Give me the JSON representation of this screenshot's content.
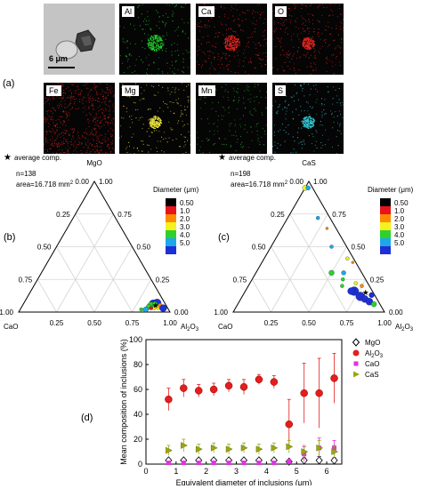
{
  "panel_labels": {
    "a": "(a)",
    "b": "(b)",
    "c": "(c)",
    "d": "(d)"
  },
  "eds_maps": {
    "scale_bar": "6 μm",
    "tiles": [
      {
        "label": "Al",
        "color": "#21d12a"
      },
      {
        "label": "Ca",
        "color": "#e0241e"
      },
      {
        "label": "O",
        "color": "#e0241e"
      },
      {
        "label": "Fe",
        "color": "#d4201c"
      },
      {
        "label": "Mg",
        "color": "#e6dd3a"
      },
      {
        "label": "Mn",
        "color": "#2ba82e"
      },
      {
        "label": "S",
        "color": "#33c4d0"
      }
    ]
  },
  "ternary_b": {
    "top_vertex": "MgO",
    "left_vertex": "CaO",
    "right_vertex_main": "Al",
    "right_vertex_sub": "2",
    "right_vertex_end": "O",
    "right_vertex_end_sub": "3",
    "legend_star": "average comp.",
    "n": "n=138",
    "area": "area=16.718 mm",
    "area_sup": "2",
    "left_ticks": [
      "0.00",
      "0.25",
      "0.50",
      "0.75",
      "1.00"
    ],
    "right_ticks": [
      "1.00",
      "0.75",
      "0.50",
      "0.25",
      "0.00"
    ],
    "bottom_ticks": [
      "0.25",
      "0.50",
      "0.75",
      "1.00"
    ],
    "colorbar_title": "Diameter (μm)",
    "colorbar_values": [
      "0.50",
      "1.0",
      "2.0",
      "3.0",
      "4.0",
      "5.0"
    ],
    "colorbar_colors": [
      "#000000",
      "#e8141b",
      "#ff8a00",
      "#f3f21c",
      "#2ed12b",
      "#1ea7e9",
      "#1f2fd6"
    ]
  },
  "ternary_c": {
    "top_vertex": "CaS",
    "left_vertex": "CaO",
    "right_vertex_main": "Al",
    "right_vertex_sub": "2",
    "right_vertex_end": "O",
    "right_vertex_end_sub": "3",
    "legend_star": "average comp.",
    "n": "n=198",
    "area": "area=16.718 mm",
    "area_sup": "2",
    "left_ticks": [
      "0.00",
      "0.25",
      "0.50",
      "0.75",
      "1.00"
    ],
    "right_ticks": [
      "1.00",
      "0.75",
      "0.50",
      "0.25",
      "0.00"
    ],
    "bottom_ticks": [
      "0.25",
      "0.50",
      "0.75",
      "1.00"
    ],
    "colorbar_title": "Diameter (μm)",
    "colorbar_values": [
      "0.50",
      "1.0",
      "2.0",
      "3.0",
      "4.0",
      "5.0"
    ],
    "colorbar_colors": [
      "#000000",
      "#e8141b",
      "#ff8a00",
      "#f3f21c",
      "#2ed12b",
      "#1ea7e9",
      "#1f2fd6"
    ]
  },
  "chart_data": {
    "type": "scatter",
    "xlabel": "Equivalent diameter of inclusions (μm)",
    "ylabel": "Mean composition of inclusions (%)",
    "xlim": [
      0,
      6.5
    ],
    "ylim": [
      0,
      100
    ],
    "xticks": [
      0,
      1,
      2,
      3,
      4,
      5,
      6
    ],
    "yticks": [
      0,
      20,
      40,
      60,
      80,
      100
    ],
    "x": [
      0.75,
      1.25,
      1.75,
      2.25,
      2.75,
      3.25,
      3.75,
      4.25,
      4.75,
      5.25,
      5.75,
      6.25
    ],
    "series": [
      {
        "name": "MgO",
        "color": "#000000",
        "marker": "diamond",
        "values": [
          3,
          3,
          3,
          3,
          3,
          3,
          3,
          3,
          2,
          3,
          3,
          3
        ],
        "err": [
          1,
          1,
          1,
          1,
          1,
          1,
          1,
          1,
          1,
          2,
          3,
          2
        ]
      },
      {
        "name": "Al2O3",
        "label_main": "Al",
        "label_sub1": "2",
        "label_mid": "O",
        "label_sub2": "3",
        "color": "#e51d1d",
        "marker": "circle",
        "values": [
          52,
          61,
          59,
          60,
          63,
          62,
          68,
          66,
          32,
          57,
          57,
          69
        ],
        "err": [
          9,
          7,
          5,
          5,
          5,
          6,
          4,
          5,
          20,
          24,
          28,
          20
        ]
      },
      {
        "name": "CaO",
        "color": "#e62ee6",
        "marker": "square",
        "values": [
          1,
          1,
          1,
          1,
          1,
          1,
          1,
          1,
          2,
          8,
          13,
          13
        ],
        "err": [
          1,
          1,
          1,
          1,
          1,
          1,
          1,
          1,
          2,
          6,
          8,
          6
        ]
      },
      {
        "name": "CaS",
        "color": "#9aa810",
        "marker": "triangle",
        "values": [
          11,
          15,
          12,
          13,
          12,
          13,
          12,
          13,
          14,
          10,
          13,
          10
        ],
        "err": [
          4,
          5,
          4,
          4,
          4,
          4,
          4,
          4,
          5,
          5,
          6,
          5
        ]
      }
    ]
  }
}
